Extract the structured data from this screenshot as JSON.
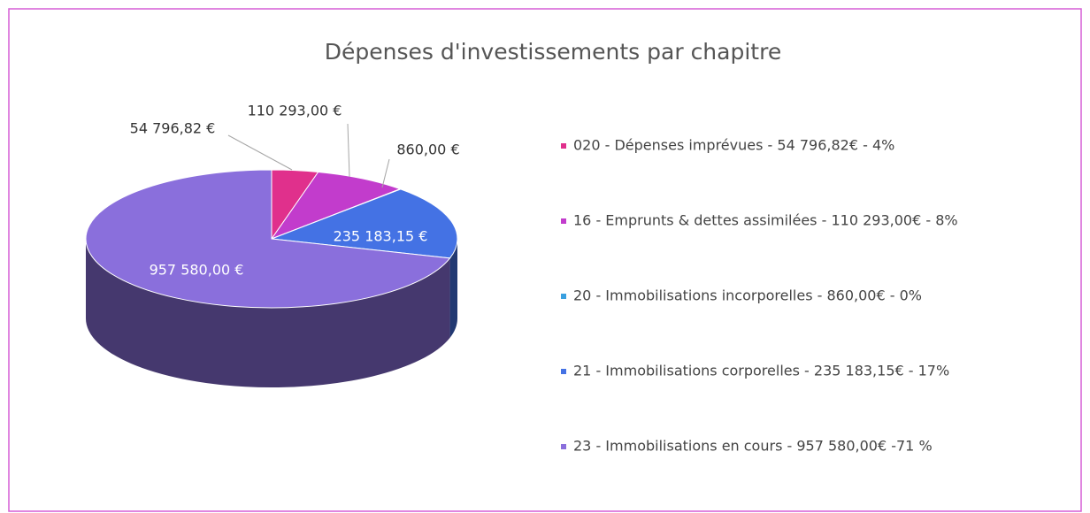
{
  "chart_data": {
    "type": "pie",
    "title": "Dépenses d'investissements par chapitre",
    "categories": [
      "020 - Dépenses imprévues - 54 796,82€ - 4%",
      "16 - Emprunts & dettes assimilées - 110 293,00€ - 8%",
      "20 - Immobilisations incorporelles - 860,00€ - 0%",
      "21 - Immobilisations corporelles - 235 183,15€ - 17%",
      "23 - Immobilisations en cours - 957 580,00€ -71 %"
    ],
    "values": [
      54796.82,
      110293.0,
      860.0,
      235183.15,
      957580.0
    ],
    "value_labels": [
      "54 796,82 €",
      "110 293,00 €",
      "860,00 €",
      "235 183,15 €",
      "957 580,00 €"
    ],
    "colors": [
      "#e0308c",
      "#c23ccc",
      "#3aa0e0",
      "#4472e4",
      "#8a6fdc"
    ],
    "legend": "right"
  }
}
